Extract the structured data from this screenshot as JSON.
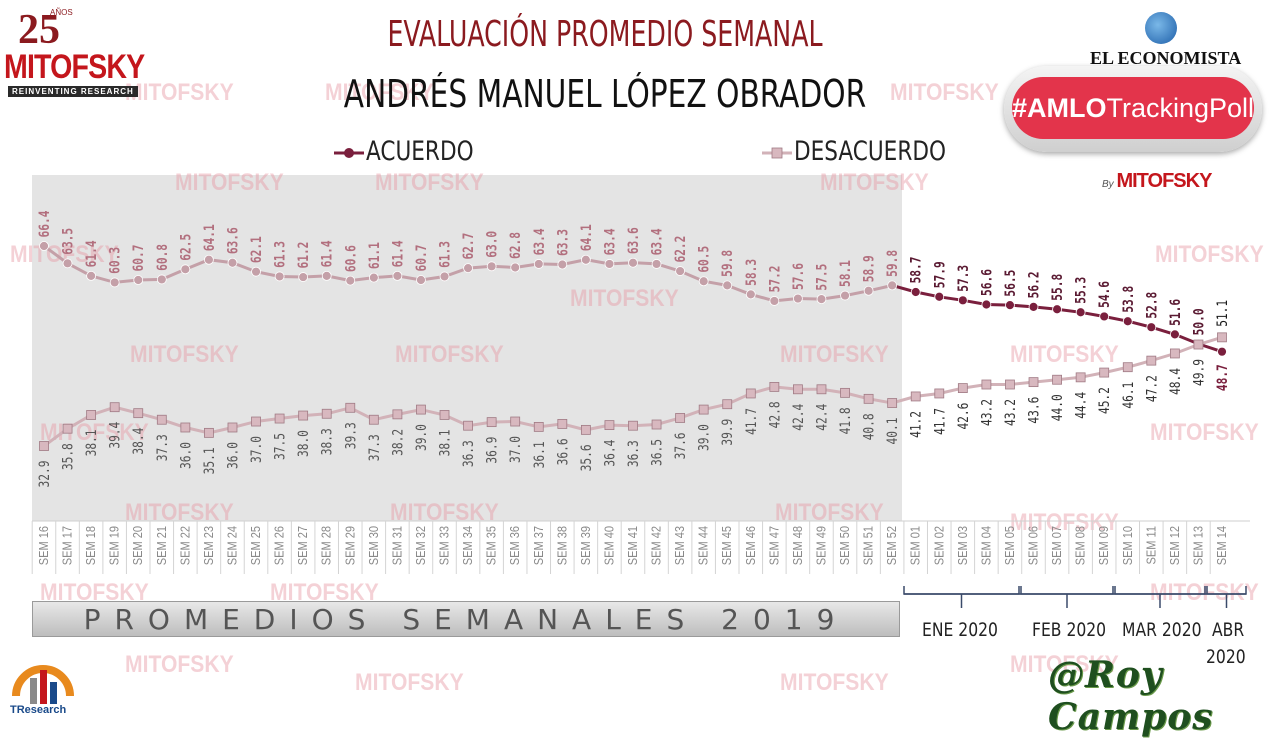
{
  "header": {
    "title_line1": "EVALUACIÓN PROMEDIO SEMANAL",
    "title_line2": "ANDRÉS MANUEL LÓPEZ OBRADOR"
  },
  "logos": {
    "mitofsky_years": "25",
    "mitofsky_anos": "AÑOS",
    "mitofsky_name": "MITOFSKY",
    "mitofsky_tagline": "REINVENTING RESEARCH",
    "economista": "EL ECONOMISTA",
    "poll_tag_bold": "#AMLO",
    "poll_tag_rest": "TrackingPoll",
    "by_label": "By",
    "by_name": "MITOFSKY",
    "tresearch": "TResearch",
    "signature": "@Roy Campos"
  },
  "watermark": "MITOFSKY",
  "band_label": "PROMEDIOS SEMANALES 2019",
  "months": [
    "ENE 2020",
    "FEB 2020",
    "MAR 2020",
    "ABR",
    "2020"
  ],
  "colors": {
    "acuerdo_2019": "#c4a0a8",
    "acuerdo_2020": "#7a1f3d",
    "desacuerdo_line": "#d2b2b8",
    "label_2019": "#b26f7e",
    "label_2020": "#5a1a32",
    "title_red": "#8b1a1f",
    "watermark": "#e89aa6"
  },
  "chart_data": {
    "type": "line",
    "title": "EVALUACIÓN PROMEDIO SEMANAL",
    "subtitle": "ANDRÉS MANUEL LÓPEZ OBRADOR",
    "categories": [
      "SEM 16",
      "SEM 17",
      "SEM 18",
      "SEM 19",
      "SEM 20",
      "SEM 21",
      "SEM 22",
      "SEM 23",
      "SEM 24",
      "SEM 25",
      "SEM 26",
      "SEM 27",
      "SEM 28",
      "SEM 29",
      "SEM 30",
      "SEM 31",
      "SEM 32",
      "SEM 33",
      "SEM 34",
      "SEM 35",
      "SEM 36",
      "SEM 37",
      "SEM 38",
      "SEM 39",
      "SEM 40",
      "SEM 41",
      "SEM 42",
      "SEM 43",
      "SEM 44",
      "SEM 45",
      "SEM 46",
      "SEM 47",
      "SEM 48",
      "SEM 49",
      "SEM 50",
      "SEM 51",
      "SEM 52",
      "SEM 01",
      "SEM 02",
      "SEM 03",
      "SEM 04",
      "SEM 05",
      "SEM 06",
      "SEM 07",
      "SEM 08",
      "SEM 09",
      "SEM 10",
      "SEM 11",
      "SEM 12",
      "SEM 13",
      "SEM 14"
    ],
    "series": [
      {
        "name": "ACUERDO",
        "values": [
          66.4,
          63.5,
          61.4,
          60.3,
          60.7,
          60.8,
          62.5,
          64.1,
          63.6,
          62.1,
          61.3,
          61.2,
          61.4,
          60.6,
          61.1,
          61.4,
          60.7,
          61.3,
          62.7,
          63.0,
          62.8,
          63.4,
          63.3,
          64.1,
          63.4,
          63.6,
          63.4,
          62.2,
          60.5,
          59.8,
          58.3,
          57.2,
          57.6,
          57.5,
          58.1,
          58.9,
          59.8,
          58.7,
          57.9,
          57.3,
          56.6,
          56.5,
          56.2,
          55.8,
          55.3,
          54.6,
          53.8,
          52.8,
          51.6,
          50.0,
          48.7
        ]
      },
      {
        "name": "DESACUERDO",
        "values": [
          32.9,
          35.8,
          38.1,
          39.4,
          38.4,
          37.3,
          36.0,
          35.1,
          36.0,
          37.0,
          37.5,
          38.0,
          38.3,
          39.3,
          37.3,
          38.2,
          39.0,
          38.1,
          36.3,
          36.9,
          37.0,
          36.1,
          36.6,
          35.6,
          36.4,
          36.3,
          36.5,
          37.6,
          39.0,
          39.9,
          41.7,
          42.8,
          42.4,
          42.4,
          41.8,
          40.8,
          40.1,
          41.2,
          41.7,
          42.6,
          43.2,
          43.2,
          43.6,
          44.0,
          44.4,
          45.2,
          46.1,
          47.2,
          48.4,
          49.9,
          51.1
        ]
      }
    ],
    "legend": "top"
  }
}
